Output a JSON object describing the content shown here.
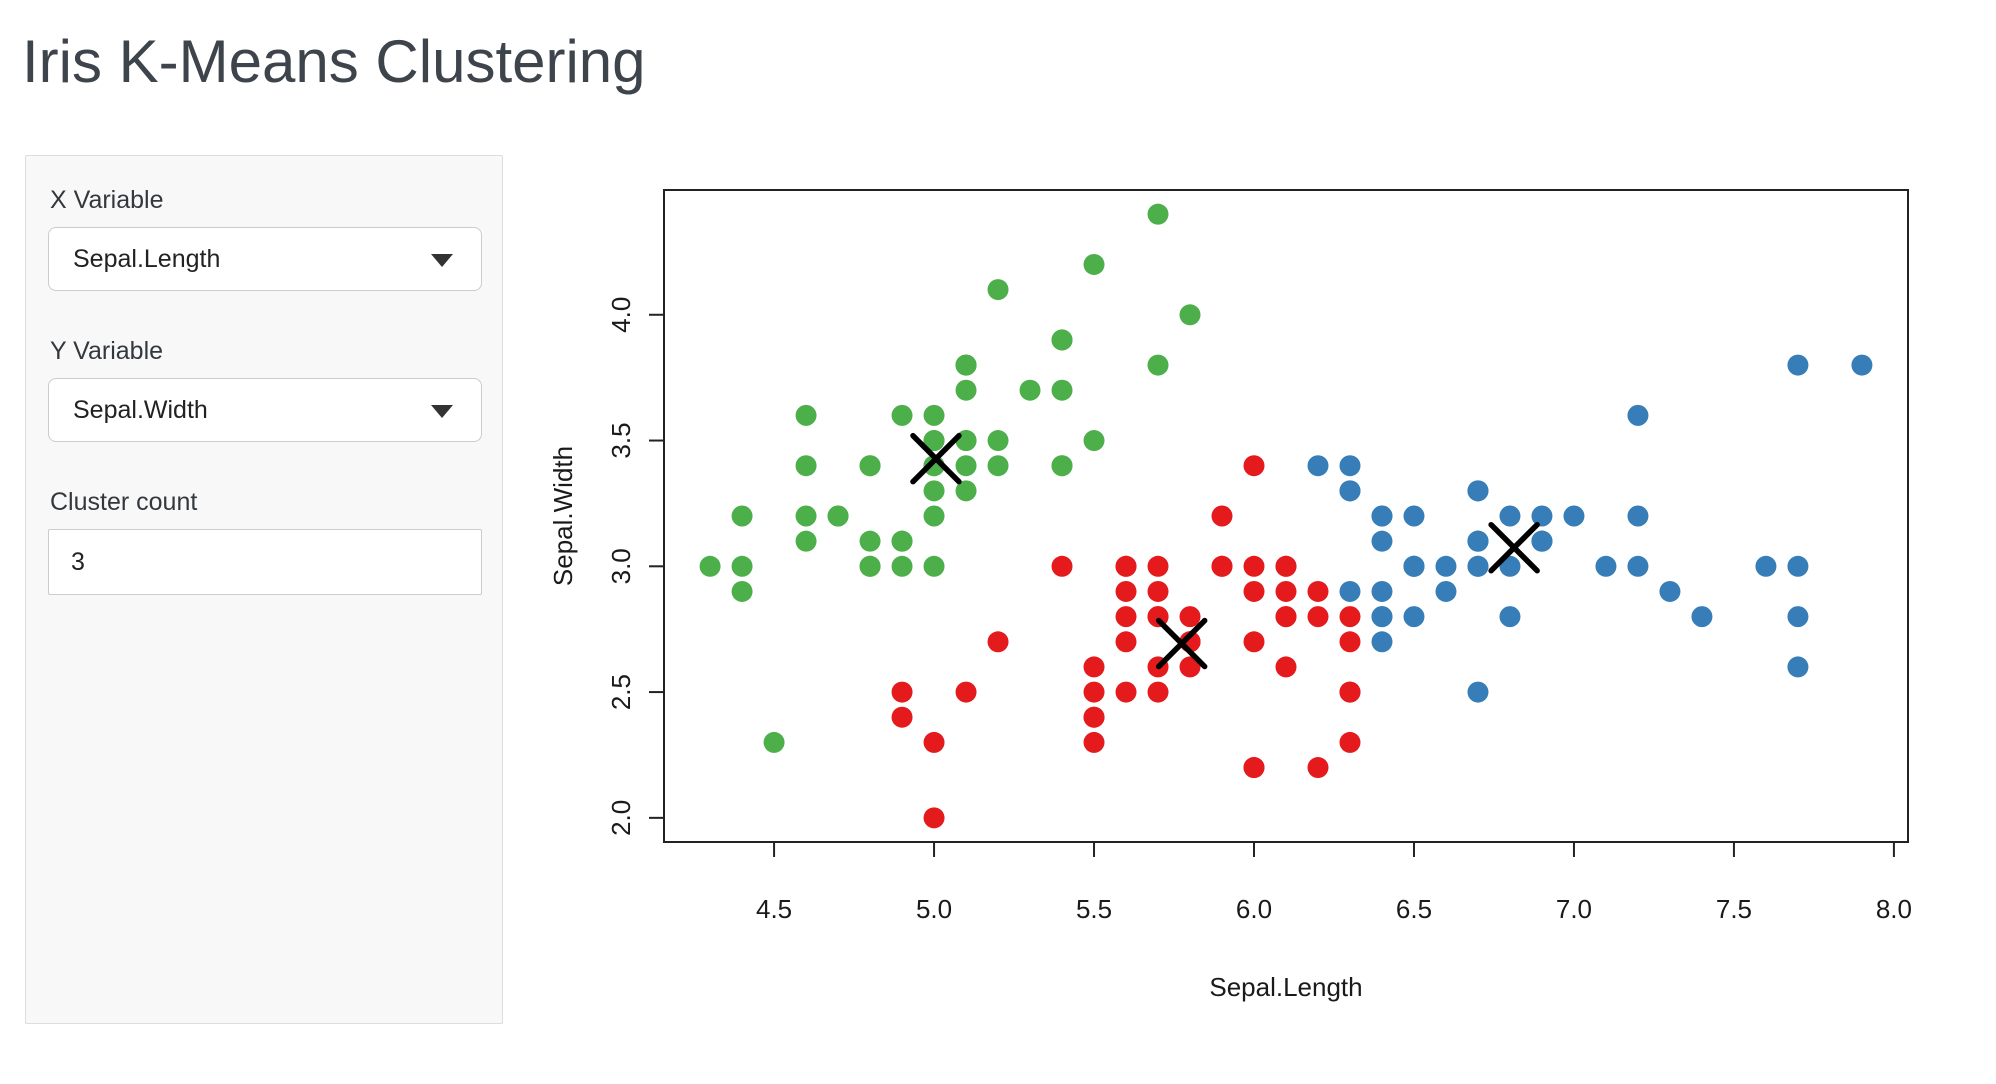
{
  "app": {
    "title": "Iris K-Means Clustering"
  },
  "sidebar": {
    "x_variable": {
      "label": "X Variable",
      "value": "Sepal.Length"
    },
    "y_variable": {
      "label": "Y Variable",
      "value": "Sepal.Width"
    },
    "cluster_count": {
      "label": "Cluster count",
      "value": "3"
    }
  },
  "chart_data": {
    "type": "scatter",
    "xlabel": "Sepal.Length",
    "ylabel": "Sepal.Width",
    "xlim": [
      4.156,
      8.044
    ],
    "ylim": [
      1.904,
      4.496
    ],
    "x_ticks": [
      4.5,
      5.0,
      5.5,
      6.0,
      6.5,
      7.0,
      7.5,
      8.0
    ],
    "y_ticks": [
      2.0,
      2.5,
      3.0,
      3.5,
      4.0
    ],
    "grid": false,
    "legend": "none",
    "point_style": "filled-circle",
    "center_marker": "x-cross",
    "cluster_colors": {
      "1": "#4DAF4A",
      "2": "#E41A1C",
      "3": "#377EB8"
    },
    "centers": [
      [
        5.006,
        3.428,
        1
      ],
      [
        5.774,
        2.693,
        2
      ],
      [
        6.813,
        3.074,
        3
      ]
    ],
    "points": [
      [
        5.1,
        3.5,
        1
      ],
      [
        4.9,
        3.0,
        1
      ],
      [
        4.7,
        3.2,
        1
      ],
      [
        4.6,
        3.1,
        1
      ],
      [
        5.0,
        3.6,
        1
      ],
      [
        5.4,
        3.9,
        1
      ],
      [
        4.6,
        3.4,
        1
      ],
      [
        5.0,
        3.4,
        1
      ],
      [
        4.4,
        2.9,
        1
      ],
      [
        4.9,
        3.1,
        1
      ],
      [
        5.4,
        3.7,
        1
      ],
      [
        4.8,
        3.4,
        1
      ],
      [
        4.8,
        3.0,
        1
      ],
      [
        4.3,
        3.0,
        1
      ],
      [
        5.8,
        4.0,
        1
      ],
      [
        5.7,
        4.4,
        1
      ],
      [
        5.4,
        3.9,
        1
      ],
      [
        5.1,
        3.5,
        1
      ],
      [
        5.7,
        3.8,
        1
      ],
      [
        5.1,
        3.8,
        1
      ],
      [
        5.4,
        3.4,
        1
      ],
      [
        5.1,
        3.7,
        1
      ],
      [
        4.6,
        3.6,
        1
      ],
      [
        5.1,
        3.3,
        1
      ],
      [
        4.8,
        3.4,
        1
      ],
      [
        5.0,
        3.0,
        1
      ],
      [
        5.0,
        3.4,
        1
      ],
      [
        5.2,
        3.5,
        1
      ],
      [
        5.2,
        3.4,
        1
      ],
      [
        4.7,
        3.2,
        1
      ],
      [
        4.8,
        3.1,
        1
      ],
      [
        5.4,
        3.4,
        1
      ],
      [
        5.2,
        4.1,
        1
      ],
      [
        5.5,
        4.2,
        1
      ],
      [
        4.9,
        3.1,
        1
      ],
      [
        5.0,
        3.2,
        1
      ],
      [
        5.5,
        3.5,
        1
      ],
      [
        4.9,
        3.6,
        1
      ],
      [
        4.4,
        3.0,
        1
      ],
      [
        5.1,
        3.4,
        1
      ],
      [
        5.0,
        3.5,
        1
      ],
      [
        4.5,
        2.3,
        1
      ],
      [
        4.4,
        3.2,
        1
      ],
      [
        5.0,
        3.5,
        1
      ],
      [
        5.1,
        3.8,
        1
      ],
      [
        4.8,
        3.0,
        1
      ],
      [
        5.1,
        3.8,
        1
      ],
      [
        4.6,
        3.2,
        1
      ],
      [
        5.3,
        3.7,
        1
      ],
      [
        5.0,
        3.3,
        1
      ],
      [
        7.0,
        3.2,
        3
      ],
      [
        6.4,
        3.2,
        3
      ],
      [
        6.9,
        3.1,
        3
      ],
      [
        5.5,
        2.3,
        2
      ],
      [
        6.5,
        2.8,
        3
      ],
      [
        5.7,
        2.8,
        2
      ],
      [
        6.3,
        3.3,
        3
      ],
      [
        4.9,
        2.4,
        2
      ],
      [
        6.6,
        2.9,
        3
      ],
      [
        5.2,
        2.7,
        2
      ],
      [
        5.0,
        2.0,
        2
      ],
      [
        5.9,
        3.0,
        2
      ],
      [
        6.0,
        2.2,
        2
      ],
      [
        6.1,
        2.9,
        2
      ],
      [
        5.6,
        2.9,
        2
      ],
      [
        6.7,
        3.1,
        3
      ],
      [
        5.6,
        3.0,
        2
      ],
      [
        5.8,
        2.7,
        2
      ],
      [
        6.2,
        2.2,
        2
      ],
      [
        5.6,
        2.5,
        2
      ],
      [
        5.9,
        3.2,
        2
      ],
      [
        6.1,
        2.8,
        2
      ],
      [
        6.3,
        2.5,
        2
      ],
      [
        6.1,
        2.8,
        2
      ],
      [
        6.4,
        2.9,
        3
      ],
      [
        6.6,
        3.0,
        3
      ],
      [
        6.8,
        2.8,
        3
      ],
      [
        6.7,
        3.0,
        3
      ],
      [
        6.0,
        2.9,
        2
      ],
      [
        5.7,
        2.6,
        2
      ],
      [
        5.5,
        2.4,
        2
      ],
      [
        5.5,
        2.4,
        2
      ],
      [
        5.8,
        2.7,
        2
      ],
      [
        6.0,
        2.7,
        2
      ],
      [
        5.4,
        3.0,
        2
      ],
      [
        6.0,
        3.4,
        2
      ],
      [
        6.7,
        3.1,
        3
      ],
      [
        6.3,
        2.3,
        2
      ],
      [
        5.6,
        3.0,
        2
      ],
      [
        5.5,
        2.5,
        2
      ],
      [
        5.5,
        2.6,
        2
      ],
      [
        6.1,
        3.0,
        2
      ],
      [
        5.8,
        2.6,
        2
      ],
      [
        5.0,
        2.3,
        2
      ],
      [
        5.6,
        2.7,
        2
      ],
      [
        5.7,
        3.0,
        2
      ],
      [
        5.7,
        2.9,
        2
      ],
      [
        6.2,
        2.9,
        2
      ],
      [
        5.1,
        2.5,
        2
      ],
      [
        5.7,
        2.8,
        2
      ],
      [
        6.3,
        3.3,
        3
      ],
      [
        5.8,
        2.7,
        2
      ],
      [
        7.1,
        3.0,
        3
      ],
      [
        6.3,
        2.9,
        3
      ],
      [
        6.5,
        3.0,
        3
      ],
      [
        7.6,
        3.0,
        3
      ],
      [
        4.9,
        2.5,
        2
      ],
      [
        7.3,
        2.9,
        3
      ],
      [
        6.7,
        2.5,
        3
      ],
      [
        7.2,
        3.6,
        3
      ],
      [
        6.5,
        3.2,
        3
      ],
      [
        6.4,
        2.7,
        3
      ],
      [
        6.8,
        3.0,
        3
      ],
      [
        5.7,
        2.5,
        2
      ],
      [
        5.8,
        2.8,
        2
      ],
      [
        6.4,
        3.2,
        3
      ],
      [
        6.5,
        3.0,
        3
      ],
      [
        7.7,
        3.8,
        3
      ],
      [
        7.7,
        2.6,
        3
      ],
      [
        6.0,
        2.2,
        2
      ],
      [
        6.9,
        3.2,
        3
      ],
      [
        5.6,
        2.8,
        2
      ],
      [
        7.7,
        2.8,
        3
      ],
      [
        6.3,
        2.7,
        2
      ],
      [
        6.7,
        3.3,
        3
      ],
      [
        7.2,
        3.2,
        3
      ],
      [
        6.2,
        2.8,
        2
      ],
      [
        6.1,
        3.0,
        2
      ],
      [
        6.4,
        2.8,
        3
      ],
      [
        7.2,
        3.0,
        3
      ],
      [
        7.4,
        2.8,
        3
      ],
      [
        7.9,
        3.8,
        3
      ],
      [
        6.4,
        2.8,
        3
      ],
      [
        6.3,
        2.8,
        2
      ],
      [
        6.1,
        2.6,
        2
      ],
      [
        7.7,
        3.0,
        3
      ],
      [
        6.3,
        3.4,
        3
      ],
      [
        6.4,
        3.1,
        3
      ],
      [
        6.0,
        3.0,
        2
      ],
      [
        6.9,
        3.1,
        3
      ],
      [
        6.7,
        3.1,
        3
      ],
      [
        6.9,
        3.1,
        3
      ],
      [
        5.8,
        2.7,
        2
      ],
      [
        6.8,
        3.2,
        3
      ],
      [
        6.7,
        3.3,
        3
      ],
      [
        6.7,
        3.0,
        3
      ],
      [
        6.3,
        2.5,
        2
      ],
      [
        6.5,
        3.0,
        3
      ],
      [
        6.2,
        3.4,
        3
      ],
      [
        5.9,
        3.0,
        2
      ]
    ]
  }
}
